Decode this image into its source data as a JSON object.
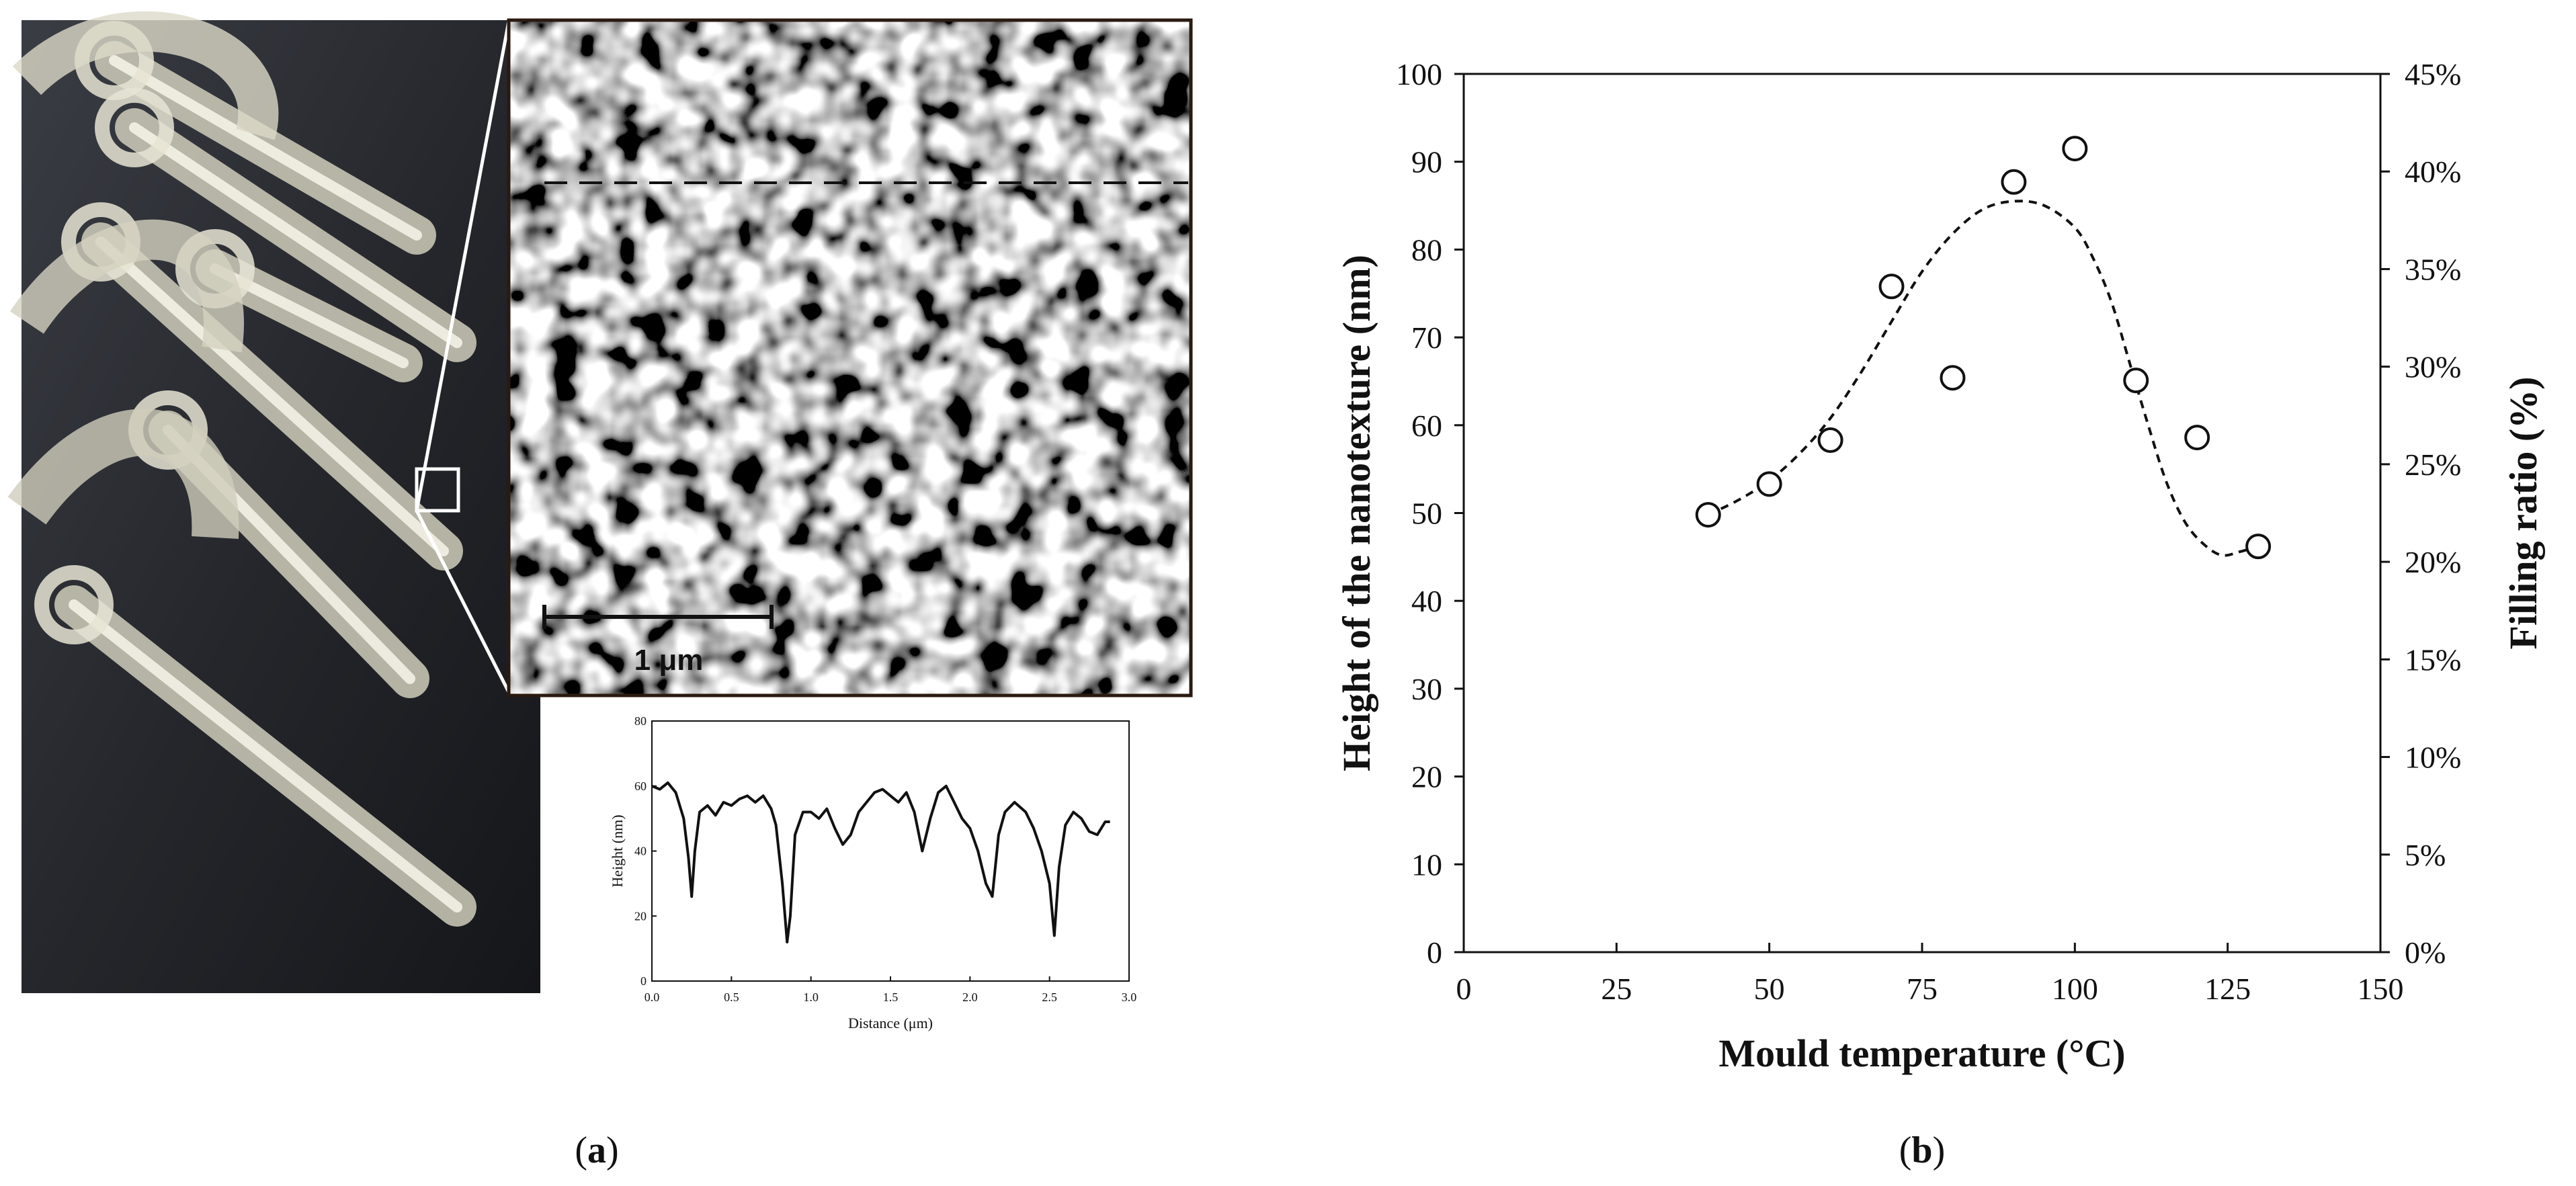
{
  "panels": {
    "a_label": "a",
    "b_label": "b"
  },
  "afm": {
    "scale_bar_label": "1 μm"
  },
  "chart_data": [
    {
      "type": "line",
      "panel": "a-inset",
      "xlabel": "Distance (μm)",
      "ylabel": "Height (nm)",
      "xlim": [
        0.0,
        3.0
      ],
      "ylim": [
        0,
        80
      ],
      "xticks": [
        "0.0",
        "0.5",
        "1.0",
        "1.5",
        "2.0",
        "2.5",
        "3.0"
      ],
      "yticks": [
        "0",
        "20",
        "40",
        "60",
        "80"
      ],
      "x": [
        0.0,
        0.05,
        0.1,
        0.15,
        0.2,
        0.23,
        0.25,
        0.27,
        0.3,
        0.35,
        0.4,
        0.45,
        0.5,
        0.55,
        0.6,
        0.65,
        0.7,
        0.75,
        0.78,
        0.82,
        0.85,
        0.87,
        0.9,
        0.95,
        1.0,
        1.05,
        1.1,
        1.15,
        1.2,
        1.25,
        1.3,
        1.35,
        1.4,
        1.45,
        1.5,
        1.55,
        1.6,
        1.65,
        1.7,
        1.75,
        1.8,
        1.85,
        1.9,
        1.95,
        2.0,
        2.05,
        2.1,
        2.14,
        2.18,
        2.22,
        2.28,
        2.35,
        2.4,
        2.45,
        2.5,
        2.53,
        2.56,
        2.6,
        2.65,
        2.7,
        2.75,
        2.8,
        2.85,
        2.88
      ],
      "y": [
        60,
        59,
        61,
        58,
        50,
        38,
        26,
        40,
        52,
        54,
        51,
        55,
        54,
        56,
        57,
        55,
        57,
        53,
        48,
        30,
        12,
        20,
        45,
        52,
        52,
        50,
        53,
        47,
        42,
        45,
        52,
        55,
        58,
        59,
        57,
        55,
        58,
        52,
        40,
        50,
        58,
        60,
        55,
        50,
        47,
        40,
        30,
        26,
        45,
        52,
        55,
        52,
        47,
        40,
        30,
        14,
        35,
        48,
        52,
        50,
        46,
        45,
        49,
        49
      ]
    },
    {
      "type": "scatter",
      "panel": "b",
      "xlabel": "Mould temperature (°C)",
      "ylabel": "Height of the nanotexture (nm)",
      "ylabel_right": "Filling ratio (%)",
      "xlim": [
        0,
        150
      ],
      "ylim": [
        0,
        100
      ],
      "ylim_right": [
        0,
        45
      ],
      "xticks": [
        "0",
        "25",
        "50",
        "75",
        "100",
        "125",
        "150"
      ],
      "yticks": [
        "0",
        "10",
        "20",
        "30",
        "40",
        "50",
        "60",
        "70",
        "80",
        "90",
        "100"
      ],
      "yticks_right": [
        "0%",
        "5%",
        "10%",
        "15%",
        "20%",
        "25%",
        "30%",
        "35%",
        "40%",
        "45%"
      ],
      "x": [
        40,
        50,
        60,
        70,
        80,
        90,
        100,
        110,
        120,
        130
      ],
      "y": [
        49.8,
        53.3,
        58.3,
        75.8,
        65.4,
        87.7,
        91.5,
        65.1,
        58.6,
        46.2
      ],
      "trend": {
        "style": "dashed",
        "x": [
          40,
          45,
          50,
          55,
          60,
          65,
          70,
          75,
          80,
          85,
          90,
          95,
          100,
          103,
          106,
          109,
          112,
          115,
          118,
          121,
          124,
          127,
          130
        ],
        "y": [
          49.8,
          51.5,
          53.7,
          56.8,
          60.8,
          66.0,
          71.8,
          77.5,
          81.8,
          84.6,
          85.5,
          85.0,
          82.5,
          79.0,
          74.0,
          67.0,
          60.0,
          53.5,
          49.0,
          46.5,
          45.2,
          45.6,
          46.2
        ]
      }
    }
  ]
}
